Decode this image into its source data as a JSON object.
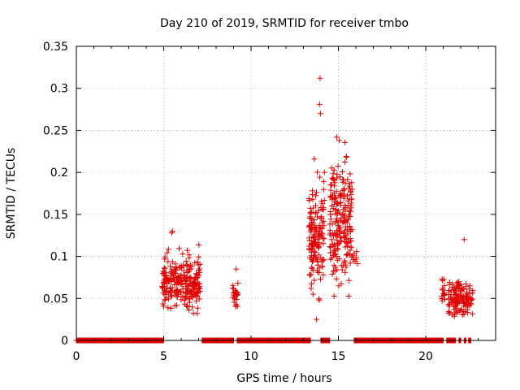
{
  "chart_data": {
    "type": "scatter",
    "title": "Day 210 of 2019, SRMTID for receiver tmbo",
    "xlabel": "GPS time / hours",
    "ylabel": "SRMTID / TECUs",
    "xlim": [
      0,
      24
    ],
    "ylim": [
      0,
      0.35
    ],
    "x_ticks": [
      0,
      5,
      10,
      15,
      20
    ],
    "x_tick_labels": [
      "0",
      "5",
      "10",
      "15",
      "20"
    ],
    "y_ticks": [
      0,
      0.05,
      0.1,
      0.15,
      0.2,
      0.25,
      0.3,
      0.35
    ],
    "y_tick_labels": [
      "0",
      "0.05",
      "0.1",
      "0.15",
      "0.2",
      "0.25",
      "0.3",
      "0.35"
    ],
    "grid": true,
    "marker": "+",
    "color": "#e00000",
    "zero_segments": [
      [
        0.0,
        5.0
      ],
      [
        7.2,
        9.0
      ],
      [
        9.2,
        13.4
      ],
      [
        14.0,
        14.5
      ],
      [
        15.9,
        21.0
      ],
      [
        21.2,
        21.7
      ],
      [
        21.9,
        22.0
      ],
      [
        22.2,
        22.3
      ],
      [
        22.45,
        22.6
      ]
    ],
    "clusters": [
      {
        "x_range": [
          4.9,
          7.1
        ],
        "y_range": [
          0.032,
          0.13
        ],
        "count": 260,
        "center": 0.07
      },
      {
        "x_range": [
          8.9,
          9.25
        ],
        "y_range": [
          0.032,
          0.085
        ],
        "count": 25,
        "center": 0.055
      },
      {
        "x_range": [
          13.3,
          14.2
        ],
        "y_range": [
          0.025,
          0.21
        ],
        "count": 150,
        "center": 0.12
      },
      {
        "x_range": [
          14.5,
          15.8
        ],
        "y_range": [
          0.04,
          0.24
        ],
        "count": 220,
        "center": 0.14
      },
      {
        "x_range": [
          15.8,
          16.1
        ],
        "y_range": [
          0.08,
          0.11
        ],
        "count": 8,
        "center": 0.095
      },
      {
        "x_range": [
          20.9,
          21.1
        ],
        "y_range": [
          0.035,
          0.085
        ],
        "count": 16,
        "center": 0.06
      },
      {
        "x_range": [
          21.3,
          22.7
        ],
        "y_range": [
          0.022,
          0.085
        ],
        "count": 140,
        "center": 0.05
      }
    ],
    "points": [
      [
        13.95,
        0.312
      ],
      [
        13.92,
        0.281
      ],
      [
        13.97,
        0.27
      ],
      [
        14.2,
        0.2
      ],
      [
        13.62,
        0.216
      ],
      [
        14.9,
        0.242
      ],
      [
        15.05,
        0.238
      ],
      [
        15.45,
        0.219
      ],
      [
        14.55,
        0.185
      ],
      [
        22.2,
        0.12
      ],
      [
        5.5,
        0.13
      ],
      [
        5.45,
        0.128
      ],
      [
        13.75,
        0.025
      ],
      [
        9.15,
        0.085
      ]
    ]
  }
}
